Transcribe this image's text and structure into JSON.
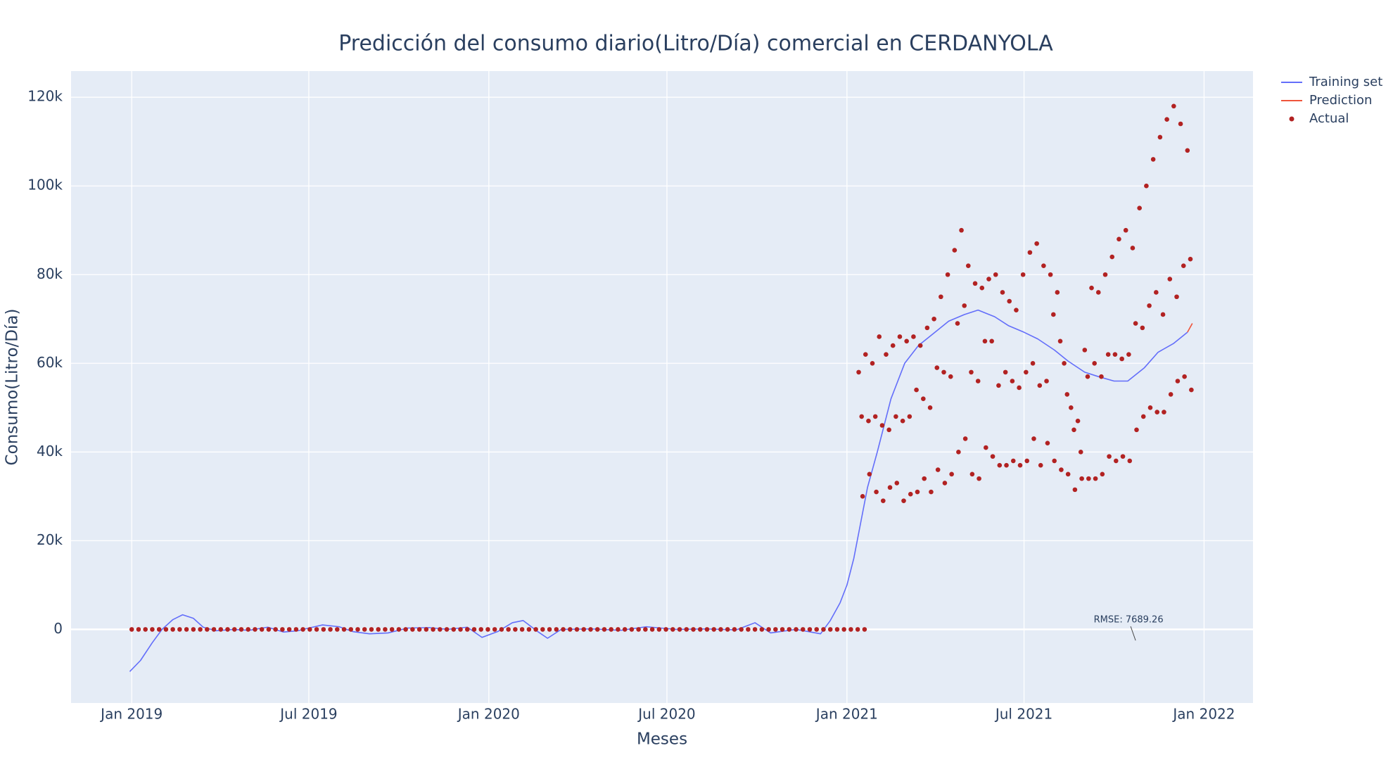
{
  "chart_data": {
    "type": "line",
    "title": "Predicción del consumo diario(Litro/Día) comercial en CERDANYOLA",
    "x_label": "Meses",
    "y_label": "Consumo(Litro/Día)",
    "xlim": [
      "2018-10-31",
      "2022-02-20"
    ],
    "ylim": [
      -16600,
      125900
    ],
    "xticks": [
      {
        "value": "2019-01-01",
        "label": "Jan 2019"
      },
      {
        "value": "2019-07-01",
        "label": "Jul 2019"
      },
      {
        "value": "2020-01-01",
        "label": "Jan 2020"
      },
      {
        "value": "2020-07-01",
        "label": "Jul 2020"
      },
      {
        "value": "2021-01-01",
        "label": "Jan 2021"
      },
      {
        "value": "2021-07-01",
        "label": "Jul 2021"
      },
      {
        "value": "2022-01-01",
        "label": "Jan 2022"
      }
    ],
    "yticks": [
      0,
      {
        "value": 20000,
        "label": "20k"
      },
      {
        "value": 40000,
        "label": "40k"
      },
      {
        "value": 60000,
        "label": "60k"
      },
      {
        "value": 80000,
        "label": "80k"
      },
      {
        "value": 100000,
        "label": "100k"
      },
      {
        "value": 120000,
        "label": "120k"
      }
    ],
    "grid": true,
    "legend_position": "right",
    "series": [
      {
        "name": "Training set",
        "mode": "lines",
        "color": "#636efa",
        "x": [
          "2018-12-30",
          "2019-01-10",
          "2019-01-22",
          "2019-02-01",
          "2019-02-12",
          "2019-02-22",
          "2019-03-05",
          "2019-03-15",
          "2019-03-28",
          "2019-04-15",
          "2019-05-01",
          "2019-05-20",
          "2019-06-05",
          "2019-06-20",
          "2019-07-01",
          "2019-07-15",
          "2019-08-01",
          "2019-08-15",
          "2019-09-01",
          "2019-09-20",
          "2019-10-10",
          "2019-11-01",
          "2019-11-20",
          "2019-12-10",
          "2019-12-25",
          "2020-01-10",
          "2020-01-25",
          "2020-02-05",
          "2020-02-20",
          "2020-03-01",
          "2020-03-15",
          "2020-04-15",
          "2020-05-15",
          "2020-06-10",
          "2020-07-10",
          "2020-08-10",
          "2020-09-10",
          "2020-09-29",
          "2020-10-15",
          "2020-11-10",
          "2020-12-05",
          "2020-12-15",
          "2020-12-25",
          "2021-01-01",
          "2021-01-08",
          "2021-01-15",
          "2021-01-22",
          "2021-02-01",
          "2021-02-15",
          "2021-03-01",
          "2021-03-15",
          "2021-04-01",
          "2021-04-15",
          "2021-05-01",
          "2021-05-15",
          "2021-06-01",
          "2021-06-15",
          "2021-07-01",
          "2021-07-15",
          "2021-08-01",
          "2021-08-15",
          "2021-09-01",
          "2021-09-15",
          "2021-10-01",
          "2021-10-15",
          "2021-11-01",
          "2021-11-15",
          "2021-12-01",
          "2021-12-15"
        ],
        "values": [
          -9500,
          -7000,
          -3000,
          0,
          2200,
          3300,
          2500,
          500,
          -300,
          0,
          -200,
          500,
          -600,
          -300,
          300,
          1000,
          600,
          -500,
          -1000,
          -800,
          300,
          400,
          0,
          500,
          -1800,
          -500,
          1500,
          2000,
          -500,
          -2000,
          0,
          100,
          -200,
          600,
          0,
          100,
          -100,
          1500,
          -800,
          0,
          -1000,
          2000,
          6000,
          10000,
          16000,
          24000,
          32000,
          40000,
          52000,
          60000,
          64000,
          67000,
          69500,
          71000,
          72000,
          70500,
          68500,
          67000,
          65500,
          63000,
          60500,
          58000,
          57000,
          56000,
          56000,
          59000,
          62500,
          64500,
          67000
        ]
      },
      {
        "name": "Prediction",
        "mode": "lines",
        "color": "#ef553b",
        "x": [
          "2021-12-15",
          "2021-12-20"
        ],
        "values": [
          67000,
          69000
        ]
      },
      {
        "name": "Actual",
        "mode": "markers",
        "color": "#b22222",
        "x": [
          "2019-01-01",
          "2019-01-08",
          "2019-01-15",
          "2019-01-22",
          "2019-01-29",
          "2019-02-05",
          "2019-02-12",
          "2019-02-19",
          "2019-02-26",
          "2019-03-05",
          "2019-03-12",
          "2019-03-19",
          "2019-03-26",
          "2019-04-02",
          "2019-04-09",
          "2019-04-16",
          "2019-04-23",
          "2019-04-30",
          "2019-05-07",
          "2019-05-14",
          "2019-05-21",
          "2019-05-28",
          "2019-06-04",
          "2019-06-11",
          "2019-06-18",
          "2019-06-25",
          "2019-07-02",
          "2019-07-09",
          "2019-07-16",
          "2019-07-23",
          "2019-07-30",
          "2019-08-06",
          "2019-08-13",
          "2019-08-20",
          "2019-08-27",
          "2019-09-03",
          "2019-09-10",
          "2019-09-17",
          "2019-09-24",
          "2019-10-01",
          "2019-10-08",
          "2019-10-15",
          "2019-10-22",
          "2019-10-29",
          "2019-11-05",
          "2019-11-12",
          "2019-11-19",
          "2019-11-26",
          "2019-12-03",
          "2019-12-10",
          "2019-12-17",
          "2019-12-24",
          "2019-12-31",
          "2020-01-07",
          "2020-01-14",
          "2020-01-21",
          "2020-01-28",
          "2020-02-04",
          "2020-02-11",
          "2020-02-18",
          "2020-02-25",
          "2020-03-03",
          "2020-03-10",
          "2020-03-17",
          "2020-03-24",
          "2020-03-31",
          "2020-04-07",
          "2020-04-14",
          "2020-04-21",
          "2020-04-28",
          "2020-05-05",
          "2020-05-12",
          "2020-05-19",
          "2020-05-26",
          "2020-06-02",
          "2020-06-09",
          "2020-06-16",
          "2020-06-23",
          "2020-06-30",
          "2020-07-07",
          "2020-07-14",
          "2020-07-21",
          "2020-07-28",
          "2020-08-04",
          "2020-08-11",
          "2020-08-18",
          "2020-08-25",
          "2020-09-01",
          "2020-09-08",
          "2020-09-15",
          "2020-09-22",
          "2020-09-29",
          "2020-10-06",
          "2020-10-13",
          "2020-10-20",
          "2020-10-27",
          "2020-11-03",
          "2020-11-10",
          "2020-11-17",
          "2020-11-24",
          "2020-12-01",
          "2020-12-08",
          "2020-12-15",
          "2020-12-22",
          "2020-12-29",
          "2021-01-05",
          "2021-01-12",
          "2021-01-19",
          "2021-01-13",
          "2021-01-16",
          "2021-01-17",
          "2021-01-20",
          "2021-01-23",
          "2021-01-24",
          "2021-01-27",
          "2021-01-30",
          "2021-01-31",
          "2021-02-03",
          "2021-02-06",
          "2021-02-07",
          "2021-02-10",
          "2021-02-13",
          "2021-02-14",
          "2021-02-17",
          "2021-02-20",
          "2021-02-21",
          "2021-02-24",
          "2021-02-27",
          "2021-02-28",
          "2021-03-03",
          "2021-03-06",
          "2021-03-07",
          "2021-03-10",
          "2021-03-13",
          "2021-03-14",
          "2021-03-17",
          "2021-03-20",
          "2021-03-21",
          "2021-03-24",
          "2021-03-27",
          "2021-03-28",
          "2021-03-31",
          "2021-04-03",
          "2021-04-04",
          "2021-04-07",
          "2021-04-10",
          "2021-04-11",
          "2021-04-14",
          "2021-04-17",
          "2021-04-18",
          "2021-04-21",
          "2021-04-24",
          "2021-04-25",
          "2021-04-28",
          "2021-05-01",
          "2021-05-02",
          "2021-05-05",
          "2021-05-08",
          "2021-05-09",
          "2021-05-12",
          "2021-05-15",
          "2021-05-16",
          "2021-05-19",
          "2021-05-22",
          "2021-05-23",
          "2021-05-26",
          "2021-05-29",
          "2021-05-30",
          "2021-06-02",
          "2021-06-05",
          "2021-06-06",
          "2021-06-09",
          "2021-06-12",
          "2021-06-13",
          "2021-06-16",
          "2021-06-19",
          "2021-06-20",
          "2021-06-23",
          "2021-06-26",
          "2021-06-27",
          "2021-06-30",
          "2021-07-03",
          "2021-07-04",
          "2021-07-07",
          "2021-07-10",
          "2021-07-11",
          "2021-07-14",
          "2021-07-17",
          "2021-07-18",
          "2021-07-21",
          "2021-07-24",
          "2021-07-25",
          "2021-07-28",
          "2021-07-31",
          "2021-08-01",
          "2021-08-04",
          "2021-08-07",
          "2021-08-08",
          "2021-08-11",
          "2021-08-14",
          "2021-08-15",
          "2021-08-18",
          "2021-08-21",
          "2021-08-22",
          "2021-08-25",
          "2021-08-28",
          "2021-08-29",
          "2021-09-01",
          "2021-09-04",
          "2021-09-05",
          "2021-09-08",
          "2021-09-11",
          "2021-09-12",
          "2021-09-15",
          "2021-09-18",
          "2021-09-19",
          "2021-09-22",
          "2021-09-25",
          "2021-09-26",
          "2021-09-29",
          "2021-10-02",
          "2021-10-03",
          "2021-10-06",
          "2021-10-09",
          "2021-10-10",
          "2021-10-13",
          "2021-10-16",
          "2021-10-17",
          "2021-10-20",
          "2021-10-23",
          "2021-10-24",
          "2021-10-27",
          "2021-10-30",
          "2021-10-31",
          "2021-11-03",
          "2021-11-06",
          "2021-11-07",
          "2021-11-10",
          "2021-11-13",
          "2021-11-14",
          "2021-11-17",
          "2021-11-20",
          "2021-11-21",
          "2021-11-24",
          "2021-11-27",
          "2021-11-28",
          "2021-12-01",
          "2021-12-04",
          "2021-12-05",
          "2021-12-08",
          "2021-12-11",
          "2021-12-12",
          "2021-12-15",
          "2021-12-18",
          "2021-12-19"
        ],
        "values": [
          0,
          0,
          0,
          0,
          0,
          0,
          0,
          0,
          0,
          0,
          0,
          0,
          0,
          0,
          0,
          0,
          0,
          0,
          0,
          0,
          0,
          0,
          0,
          0,
          0,
          0,
          0,
          0,
          0,
          0,
          0,
          0,
          0,
          0,
          0,
          0,
          0,
          0,
          0,
          0,
          0,
          0,
          0,
          0,
          0,
          0,
          0,
          0,
          0,
          0,
          0,
          0,
          0,
          0,
          0,
          0,
          0,
          0,
          0,
          0,
          0,
          0,
          0,
          0,
          0,
          0,
          0,
          0,
          0,
          0,
          0,
          0,
          0,
          0,
          0,
          0,
          0,
          0,
          0,
          0,
          0,
          0,
          0,
          0,
          0,
          0,
          0,
          0,
          0,
          0,
          0,
          0,
          0,
          0,
          0,
          0,
          0,
          0,
          0,
          0,
          0,
          0,
          0,
          0,
          0,
          0,
          0,
          0,
          58000,
          48000,
          30000,
          62000,
          47000,
          35000,
          60000,
          48000,
          31000,
          66000,
          46000,
          29000,
          62000,
          45000,
          32000,
          64000,
          48000,
          33000,
          66000,
          47000,
          29000,
          65000,
          48000,
          30500,
          66000,
          54000,
          31000,
          64000,
          52000,
          34000,
          68000,
          50000,
          31000,
          70000,
          59000,
          36000,
          75000,
          58000,
          33000,
          80000,
          57000,
          35000,
          85500,
          69000,
          40000,
          90000,
          73000,
          43000,
          82000,
          58000,
          35000,
          78000,
          56000,
          34000,
          77000,
          65000,
          41000,
          79000,
          65000,
          39000,
          80000,
          55000,
          37000,
          76000,
          58000,
          37000,
          74000,
          56000,
          38000,
          72000,
          54500,
          37000,
          80000,
          58000,
          38000,
          85000,
          60000,
          43000,
          87000,
          55000,
          37000,
          82000,
          56000,
          42000,
          80000,
          71000,
          38000,
          76000,
          65000,
          36000,
          60000,
          53000,
          35000,
          50000,
          45000,
          31500,
          47000,
          40000,
          34000,
          63000,
          57000,
          34000,
          77000,
          60000,
          34000,
          76000,
          57000,
          35000,
          80000,
          62000,
          39000,
          84000,
          62000,
          38000,
          88000,
          61000,
          39000,
          90000,
          62000,
          38000,
          86000,
          69000,
          45000,
          95000,
          68000,
          48000,
          100000,
          73000,
          50000,
          106000,
          76000,
          49000,
          111000,
          71000,
          49000,
          115000,
          79000,
          53000,
          118000,
          75000,
          56000,
          114000,
          82000,
          57000,
          108000,
          83500,
          54000
        ]
      }
    ],
    "annotations": [
      {
        "text": "RMSE: 7689.26",
        "x": "2021-10-23",
        "y": -2500
      }
    ]
  }
}
